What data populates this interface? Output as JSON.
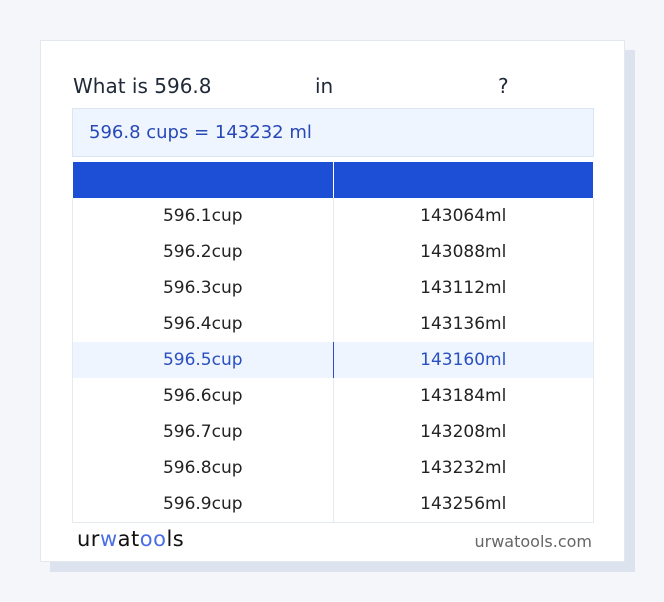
{
  "title": {
    "prefix": "What is 596.8",
    "mid": "in",
    "suffix": "?"
  },
  "result": "596.8 cups = 143232 ml",
  "table": {
    "headers": [
      "",
      ""
    ],
    "highlight_index": 4,
    "rows": [
      [
        "596.1cup",
        "143064ml"
      ],
      [
        "596.2cup",
        "143088ml"
      ],
      [
        "596.3cup",
        "143112ml"
      ],
      [
        "596.4cup",
        "143136ml"
      ],
      [
        "596.5cup",
        "143160ml"
      ],
      [
        "596.6cup",
        "143184ml"
      ],
      [
        "596.7cup",
        "143208ml"
      ],
      [
        "596.8cup",
        "143232ml"
      ],
      [
        "596.9cup",
        "143256ml"
      ]
    ]
  },
  "footer": {
    "logo": "urwatools",
    "site": "urwatools.com"
  },
  "colors": {
    "accent": "#1d4fd6",
    "highlight_bg": "#eef5fe"
  }
}
